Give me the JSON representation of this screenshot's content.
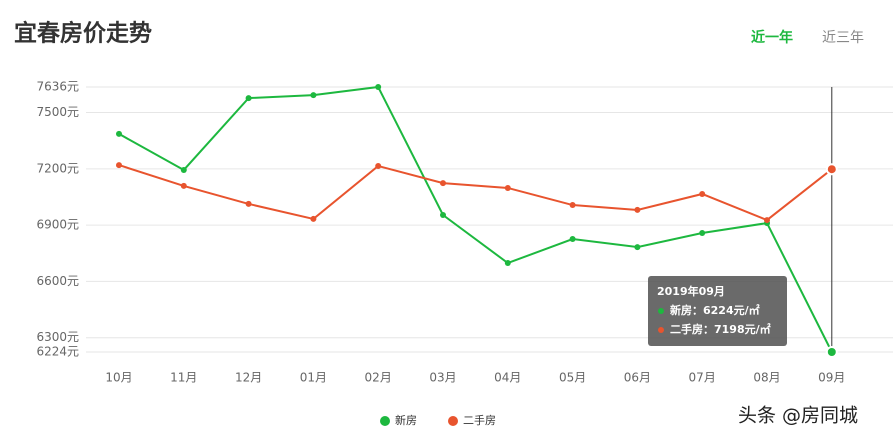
{
  "chart_data": {
    "type": "line",
    "title": "宜春房价走势",
    "tabs": [
      "近一年",
      "近三年"
    ],
    "categories": [
      "10月",
      "11月",
      "12月",
      "01月",
      "02月",
      "03月",
      "04月",
      "05月",
      "06月",
      "07月",
      "08月",
      "09月"
    ],
    "series": [
      {
        "name": "新房",
        "color": "#1db83f",
        "values": [
          7386,
          7194,
          7577,
          7593,
          7636,
          6954,
          6698,
          6826,
          6783,
          6858,
          6911,
          6224
        ]
      },
      {
        "name": "二手房",
        "color": "#e8542e",
        "values": [
          7220,
          7109,
          7013,
          6933,
          7215,
          7124,
          7098,
          7007,
          6981,
          7066,
          6927,
          7198
        ]
      }
    ],
    "ylim": [
      6224,
      7636
    ],
    "yticks": [
      {
        "value": 6224,
        "label": "6224元"
      },
      {
        "value": 6300,
        "label": "6300元"
      },
      {
        "value": 6600,
        "label": "6600元"
      },
      {
        "value": 6900,
        "label": "6900元"
      },
      {
        "value": 7200,
        "label": "7200元"
      },
      {
        "value": 7500,
        "label": "7500元"
      },
      {
        "value": 7636,
        "label": "7636元"
      }
    ],
    "grid": true,
    "tooltip": {
      "title": "2019年09月",
      "lines": [
        "新房：6224元/㎡",
        "二手房：7198元/㎡"
      ]
    },
    "watermark": "头条 @房同城"
  }
}
